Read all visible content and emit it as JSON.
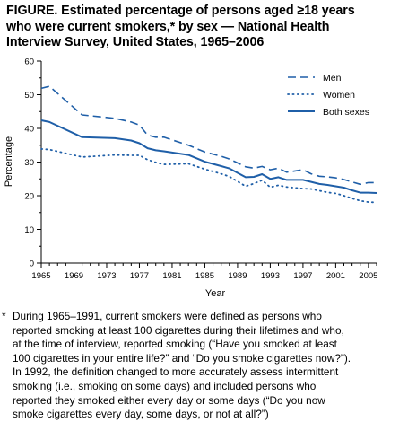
{
  "figure": {
    "title_lines": [
      "FIGURE. Estimated percentage of persons aged ≥18 years",
      "who were current smokers,* by sex — National Health",
      "Interview Survey, United States, 1965–2006"
    ]
  },
  "chart_data": {
    "type": "line",
    "title": "FIGURE. Estimated percentage of persons aged ≥18 years who were current smokers,* by sex — National Health Interview Survey, United States, 1965–2006",
    "xlabel": "Year",
    "ylabel": "Percentage",
    "xlim": [
      1965,
      2006
    ],
    "ylim": [
      0,
      60
    ],
    "xticks": [
      1965,
      1969,
      1973,
      1977,
      1981,
      1985,
      1989,
      1993,
      1997,
      2001,
      2005
    ],
    "yticks": [
      0,
      10,
      20,
      30,
      40,
      50,
      60
    ],
    "grid": false,
    "legend": "top-right",
    "series": [
      {
        "name": "Men",
        "style": "dashed",
        "color": "#1f5fa8",
        "x": [
          1965,
          1966,
          1970,
          1974,
          1976,
          1977,
          1978,
          1979,
          1980,
          1983,
          1985,
          1987,
          1988,
          1990,
          1991,
          1992,
          1993,
          1994,
          1995,
          1997,
          1998,
          1999,
          2000,
          2001,
          2002,
          2003,
          2004,
          2005,
          2006
        ],
        "values": [
          51.9,
          52.5,
          44.0,
          43.0,
          41.9,
          41.0,
          38.0,
          37.4,
          37.4,
          35.0,
          33.0,
          31.7,
          30.9,
          28.6,
          28.2,
          28.7,
          27.7,
          28.2,
          27.0,
          27.7,
          26.5,
          25.8,
          25.6,
          25.3,
          24.8,
          24.1,
          23.4,
          23.9,
          23.9
        ]
      },
      {
        "name": "Women",
        "style": "dotted",
        "color": "#1f5fa8",
        "x": [
          1965,
          1966,
          1970,
          1974,
          1976,
          1977,
          1978,
          1979,
          1980,
          1983,
          1985,
          1987,
          1988,
          1990,
          1991,
          1992,
          1993,
          1994,
          1995,
          1997,
          1998,
          1999,
          2000,
          2001,
          2002,
          2003,
          2004,
          2005,
          2006
        ],
        "values": [
          33.9,
          33.7,
          31.5,
          32.1,
          32.0,
          32.0,
          30.7,
          29.9,
          29.3,
          29.5,
          27.9,
          26.5,
          25.7,
          22.8,
          23.6,
          24.6,
          22.5,
          23.1,
          22.6,
          22.1,
          22.0,
          21.5,
          21.0,
          20.7,
          20.0,
          19.2,
          18.5,
          18.1,
          18.0
        ]
      },
      {
        "name": "Both sexes",
        "style": "solid",
        "color": "#1f5fa8",
        "x": [
          1965,
          1966,
          1970,
          1974,
          1976,
          1977,
          1978,
          1979,
          1980,
          1983,
          1985,
          1987,
          1988,
          1990,
          1991,
          1992,
          1993,
          1994,
          1995,
          1997,
          1998,
          1999,
          2000,
          2001,
          2002,
          2003,
          2004,
          2005,
          2006
        ],
        "values": [
          42.4,
          41.9,
          37.4,
          37.1,
          36.4,
          35.6,
          34.1,
          33.5,
          33.2,
          32.1,
          30.1,
          28.8,
          28.1,
          25.5,
          25.6,
          26.4,
          25.0,
          25.5,
          24.7,
          24.7,
          24.1,
          23.5,
          23.2,
          22.8,
          22.4,
          21.6,
          20.9,
          20.9,
          20.8
        ]
      }
    ]
  },
  "footnote": {
    "marker": "*",
    "lines": [
      "During 1965–1991, current smokers were defined as persons who",
      "reported smoking at least 100 cigarettes during their lifetimes and who,",
      "at the time of interview, reported smoking (“Have you smoked at least",
      "100 cigarettes in your entire life?” and “Do you smoke cigarettes now?”).",
      "In 1992, the definition changed to more accurately assess intermittent",
      "smoking (i.e., smoking on some days) and included persons who",
      "reported they smoked either every day or some days (“Do you now",
      "smoke cigarettes every day, some days, or not at all?”)"
    ]
  }
}
